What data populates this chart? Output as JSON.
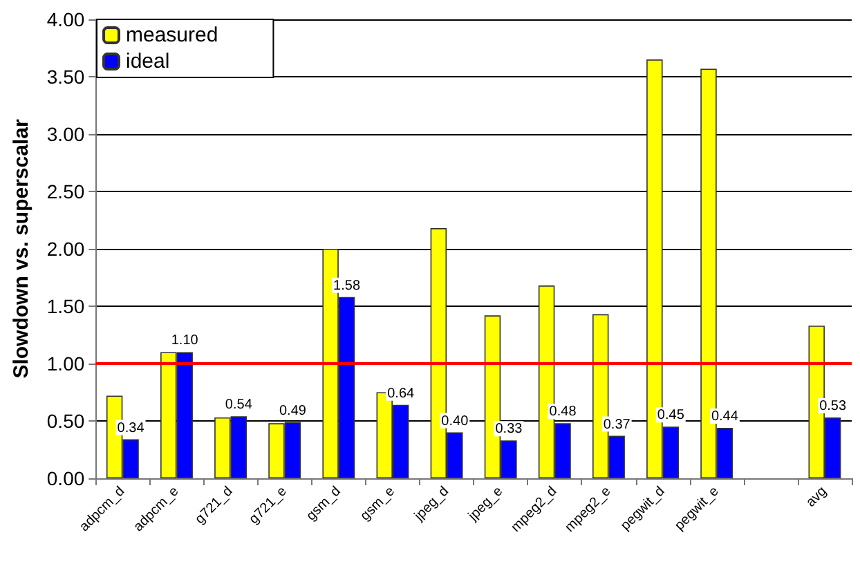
{
  "chart_data": {
    "type": "bar",
    "ylabel": "Slowdown vs. superscalar",
    "categories": [
      "adpcm_d",
      "adpcm_e",
      "g721_d",
      "g721_e",
      "gsm_d",
      "gsm_e",
      "jpeg_d",
      "jpeg_e",
      "mpeg2_d",
      "mpeg2_e",
      "pegwit_d",
      "pegwit_e",
      null,
      "avg"
    ],
    "series": [
      {
        "name": "measured",
        "color": "#ffff00",
        "values": [
          0.72,
          1.1,
          0.53,
          0.48,
          2.0,
          0.75,
          2.18,
          1.42,
          1.68,
          1.43,
          3.65,
          3.57,
          null,
          1.33
        ]
      },
      {
        "name": "ideal",
        "color": "#0000ff",
        "values": [
          0.34,
          1.1,
          0.54,
          0.49,
          1.58,
          0.64,
          0.4,
          0.33,
          0.48,
          0.37,
          0.45,
          0.44,
          null,
          0.53
        ],
        "value_labels": [
          "0.34",
          "1.10",
          "0.54",
          "0.49",
          "1.58",
          "0.64",
          "0.40",
          "0.33",
          "0.48",
          "0.37",
          "0.45",
          "0.44",
          null,
          "0.53"
        ]
      }
    ],
    "ylim": [
      0,
      4
    ],
    "yticks": [
      {
        "value": 0,
        "label": "0.00"
      },
      {
        "value": 0.5,
        "label": "0.50"
      },
      {
        "value": 1,
        "label": "1.00"
      },
      {
        "value": 1.5,
        "label": "1.50"
      },
      {
        "value": 2,
        "label": "2.00"
      },
      {
        "value": 2.5,
        "label": "2.50"
      },
      {
        "value": 3,
        "label": "3.00"
      },
      {
        "value": 3.5,
        "label": "3.50"
      },
      {
        "value": 4,
        "label": "4.00"
      }
    ],
    "ref_lines": [
      {
        "axis": "y",
        "value": 1,
        "color": "#ff0000"
      }
    ],
    "grid": "y",
    "legend": "top left"
  }
}
